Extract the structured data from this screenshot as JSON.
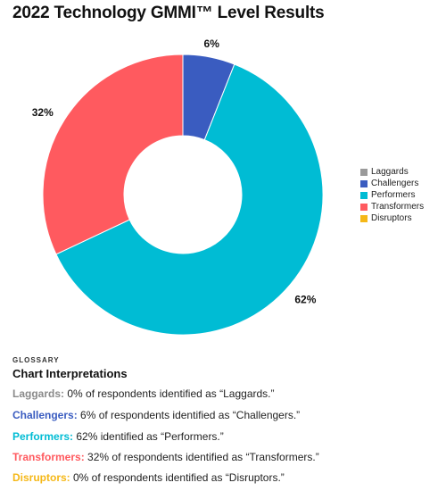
{
  "title": "2022 Technology GMMI™ Level Results",
  "chart_data": {
    "type": "pie",
    "donut": true,
    "categories": [
      "Laggards",
      "Challengers",
      "Performers",
      "Transformers",
      "Disruptors"
    ],
    "values": [
      0,
      6,
      62,
      32,
      0
    ],
    "colors": [
      "#9a9a9a",
      "#3a5cc0",
      "#00bcd4",
      "#ff5a5f",
      "#f5b818"
    ],
    "data_labels": [
      "",
      "6%",
      "62%",
      "32%",
      ""
    ],
    "legend_position": "right"
  },
  "legend": {
    "items": [
      {
        "label": "Laggards"
      },
      {
        "label": "Challengers"
      },
      {
        "label": "Performers"
      },
      {
        "label": "Transformers"
      },
      {
        "label": "Disruptors"
      }
    ]
  },
  "glossary": {
    "eyebrow": "GLOSSARY",
    "heading": "Chart Interpretations",
    "lines": [
      {
        "term": "Laggards:",
        "text": " 0% of respondents identified as “Laggards.”"
      },
      {
        "term": "Challengers:",
        "text": " 6% of respondents identified as “Challengers.”"
      },
      {
        "term": "Performers:",
        "text": " 62% identified as “Performers.”"
      },
      {
        "term": "Transformers:",
        "text": " 32% of respondents identified as “Transformers.”"
      },
      {
        "term": "Disruptors:",
        "text": " 0% of respondents identified as “Disruptors.”"
      }
    ]
  }
}
